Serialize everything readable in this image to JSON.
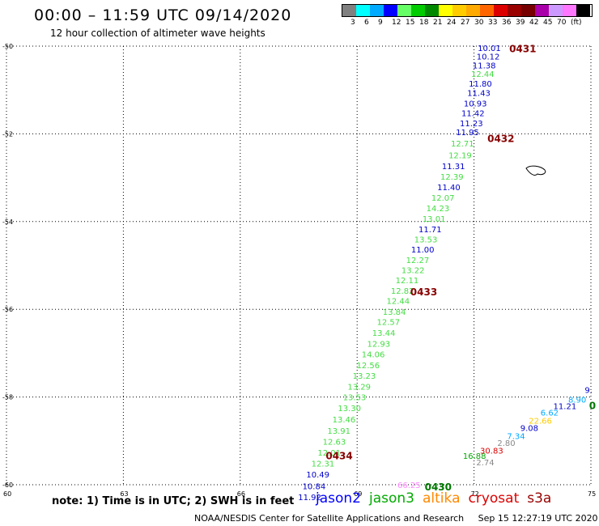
{
  "header": {
    "title": "00:00 – 11:59 UTC 09/14/2020",
    "subtitle": "12 hour collection of altimeter wave heights"
  },
  "color_scale": {
    "labels": [
      "3",
      "6",
      "9",
      "12",
      "15",
      "18",
      "21",
      "24",
      "27",
      "30",
      "33",
      "36",
      "39",
      "42",
      "45",
      "70",
      "(ft)"
    ],
    "colors": [
      "#808080",
      "#00ffff",
      "#00aaff",
      "#0000ff",
      "#66ff66",
      "#00cc00",
      "#008800",
      "#ffff00",
      "#ffcc00",
      "#ffaa00",
      "#ff6600",
      "#dd0000",
      "#990000",
      "#770000",
      "#aa00aa",
      "#cc99ff",
      "#ff77ff",
      "#000000"
    ]
  },
  "axes": {
    "y_labels": [
      "-50",
      "-52",
      "-54",
      "-56",
      "-58",
      "-60"
    ],
    "x_labels": [
      "60",
      "63",
      "66",
      "69",
      "72",
      "75"
    ]
  },
  "chart_data": {
    "type": "scatter",
    "xlabel": "",
    "ylabel": "",
    "xlim": [
      60,
      75
    ],
    "ylim": [
      -60,
      -50
    ],
    "series": [
      {
        "points": [
          {
            "lon": 72.69,
            "lat": -50.04,
            "v": "10.01",
            "c": "#0000cc"
          },
          {
            "lon": 72.66,
            "lat": -50.23,
            "v": "10.12",
            "c": "#0000cc"
          },
          {
            "lon": 72.56,
            "lat": -50.43,
            "v": "11.38",
            "c": "#0000cc"
          },
          {
            "lon": 72.52,
            "lat": -50.63,
            "v": "12.44",
            "c": "#44dd44"
          },
          {
            "lon": 72.46,
            "lat": -50.85,
            "v": "11.80",
            "c": "#0000cc"
          },
          {
            "lon": 72.42,
            "lat": -51.06,
            "v": "11.43",
            "c": "#0000cc"
          },
          {
            "lon": 72.33,
            "lat": -51.3,
            "v": "10.93",
            "c": "#0000cc"
          },
          {
            "lon": 72.27,
            "lat": -51.52,
            "v": "11.42",
            "c": "#0000cc"
          },
          {
            "lon": 72.23,
            "lat": -51.75,
            "v": "11.23",
            "c": "#0000cc"
          },
          {
            "lon": 72.13,
            "lat": -51.96,
            "v": "11.95",
            "c": "#0000cc"
          },
          {
            "lon": 72.0,
            "lat": -52.21,
            "v": "12.71",
            "c": "#44dd44"
          },
          {
            "lon": 71.94,
            "lat": -52.48,
            "v": "12.19",
            "c": "#44dd44"
          },
          {
            "lon": 71.77,
            "lat": -52.73,
            "v": "11.31",
            "c": "#0000cc"
          },
          {
            "lon": 71.73,
            "lat": -52.97,
            "v": "12.39",
            "c": "#44dd44"
          },
          {
            "lon": 71.65,
            "lat": -53.21,
            "v": "11.40",
            "c": "#0000cc"
          },
          {
            "lon": 71.5,
            "lat": -53.45,
            "v": "12.07",
            "c": "#44dd44"
          },
          {
            "lon": 71.37,
            "lat": -53.69,
            "v": "14.23",
            "c": "#44dd44"
          },
          {
            "lon": 71.27,
            "lat": -53.93,
            "v": "13.01",
            "c": "#44dd44"
          },
          {
            "lon": 71.17,
            "lat": -54.17,
            "v": "11.71",
            "c": "#0000cc"
          },
          {
            "lon": 71.06,
            "lat": -54.4,
            "v": "13.53",
            "c": "#44dd44"
          },
          {
            "lon": 70.98,
            "lat": -54.63,
            "v": "11.00",
            "c": "#0000cc"
          },
          {
            "lon": 70.85,
            "lat": -54.87,
            "v": "12.27",
            "c": "#44dd44"
          },
          {
            "lon": 70.73,
            "lat": -55.1,
            "v": "13.22",
            "c": "#44dd44"
          },
          {
            "lon": 70.58,
            "lat": -55.33,
            "v": "12.11",
            "c": "#44dd44"
          },
          {
            "lon": 70.46,
            "lat": -55.57,
            "v": "12.82",
            "c": "#44dd44"
          },
          {
            "lon": 70.35,
            "lat": -55.8,
            "v": "12.44",
            "c": "#44dd44"
          },
          {
            "lon": 70.25,
            "lat": -56.05,
            "v": "13.84",
            "c": "#44dd44"
          },
          {
            "lon": 70.1,
            "lat": -56.28,
            "v": "12.57",
            "c": "#44dd44"
          },
          {
            "lon": 69.98,
            "lat": -56.53,
            "v": "13.44",
            "c": "#44dd44"
          },
          {
            "lon": 69.85,
            "lat": -56.78,
            "v": "12.93",
            "c": "#44dd44"
          },
          {
            "lon": 69.71,
            "lat": -57.02,
            "v": "14.06",
            "c": "#44dd44"
          },
          {
            "lon": 69.58,
            "lat": -57.27,
            "v": "12.56",
            "c": "#44dd44"
          },
          {
            "lon": 69.48,
            "lat": -57.51,
            "v": "13.23",
            "c": "#44dd44"
          },
          {
            "lon": 69.35,
            "lat": -57.76,
            "v": "13.29",
            "c": "#44dd44"
          },
          {
            "lon": 69.23,
            "lat": -58.0,
            "v": "13.53",
            "c": "#44dd44"
          },
          {
            "lon": 69.1,
            "lat": -58.25,
            "v": "13.30",
            "c": "#44dd44"
          },
          {
            "lon": 68.96,
            "lat": -58.51,
            "v": "13.46",
            "c": "#44dd44"
          },
          {
            "lon": 68.83,
            "lat": -58.76,
            "v": "13.91",
            "c": "#44dd44"
          },
          {
            "lon": 68.71,
            "lat": -59.01,
            "v": "12.63",
            "c": "#44dd44"
          },
          {
            "lon": 68.58,
            "lat": -59.26,
            "v": "12.01",
            "c": "#44dd44"
          },
          {
            "lon": 68.42,
            "lat": -59.51,
            "v": "12.31",
            "c": "#44dd44"
          },
          {
            "lon": 68.29,
            "lat": -59.76,
            "v": "10.49",
            "c": "#0000cc"
          },
          {
            "lon": 68.19,
            "lat": -60.03,
            "v": "10.84",
            "c": "#0000cc"
          },
          {
            "lon": 68.08,
            "lat": -60.28,
            "v": "11.92",
            "c": "#0000cc"
          },
          {
            "lon": 70.63,
            "lat": -60.0,
            "v": "66.25",
            "c": "#ff88ff"
          },
          {
            "lon": 72.52,
            "lat": -59.48,
            "v": "2.74",
            "c": "#888888"
          },
          {
            "lon": 72.31,
            "lat": -59.34,
            "v": "16.88",
            "c": "#00aa00"
          },
          {
            "lon": 72.75,
            "lat": -59.22,
            "v": "30.83",
            "c": "#dd0000"
          },
          {
            "lon": 73.06,
            "lat": -59.04,
            "v": "2.80",
            "c": "#888888"
          },
          {
            "lon": 73.31,
            "lat": -58.88,
            "v": "7.34",
            "c": "#00aaff"
          },
          {
            "lon": 73.65,
            "lat": -58.7,
            "v": "9.08",
            "c": "#0000cc"
          },
          {
            "lon": 74.0,
            "lat": -58.53,
            "v": "22.66",
            "c": "#ffcc00"
          },
          {
            "lon": 74.17,
            "lat": -58.35,
            "v": "6.62",
            "c": "#00aaff"
          },
          {
            "lon": 74.63,
            "lat": -58.2,
            "v": "11.21",
            "c": "#0000cc"
          },
          {
            "lon": 74.88,
            "lat": -58.05,
            "v": "8.90",
            "c": "#00aaff"
          },
          {
            "lon": 75.04,
            "lat": -57.83,
            "v": "9.",
            "c": "#0000cc"
          }
        ]
      }
    ],
    "pass_labels": [
      {
        "lon": 73.25,
        "lat": -50.05,
        "v": "0431",
        "c": "#880000"
      },
      {
        "lon": 72.69,
        "lat": -52.09,
        "v": "0432",
        "c": "#880000"
      },
      {
        "lon": 70.71,
        "lat": -55.59,
        "v": "0433",
        "c": "#880000"
      },
      {
        "lon": 68.54,
        "lat": -59.33,
        "v": "0434",
        "c": "#880000"
      },
      {
        "lon": 71.08,
        "lat": -60.04,
        "v": "0430",
        "c": "#007700"
      },
      {
        "lon": 75.04,
        "lat": -58.18,
        "v": "0",
        "c": "#007700"
      }
    ]
  },
  "footer": {
    "note": "note: 1) Time is in UTC; 2) SWH is in feet",
    "satellites": [
      {
        "name": "jason2",
        "color": "#0000ff"
      },
      {
        "name": "jason3",
        "color": "#00aa00"
      },
      {
        "name": "altika",
        "color": "#ff8800"
      },
      {
        "name": "cryosat",
        "color": "#dd0000"
      },
      {
        "name": "s3a",
        "color": "#990000"
      }
    ],
    "credit": "NOAA/NESDIS Center for Satellite Applications and Research",
    "timestamp": "Sep 15 12:27:19 UTC 2020"
  }
}
